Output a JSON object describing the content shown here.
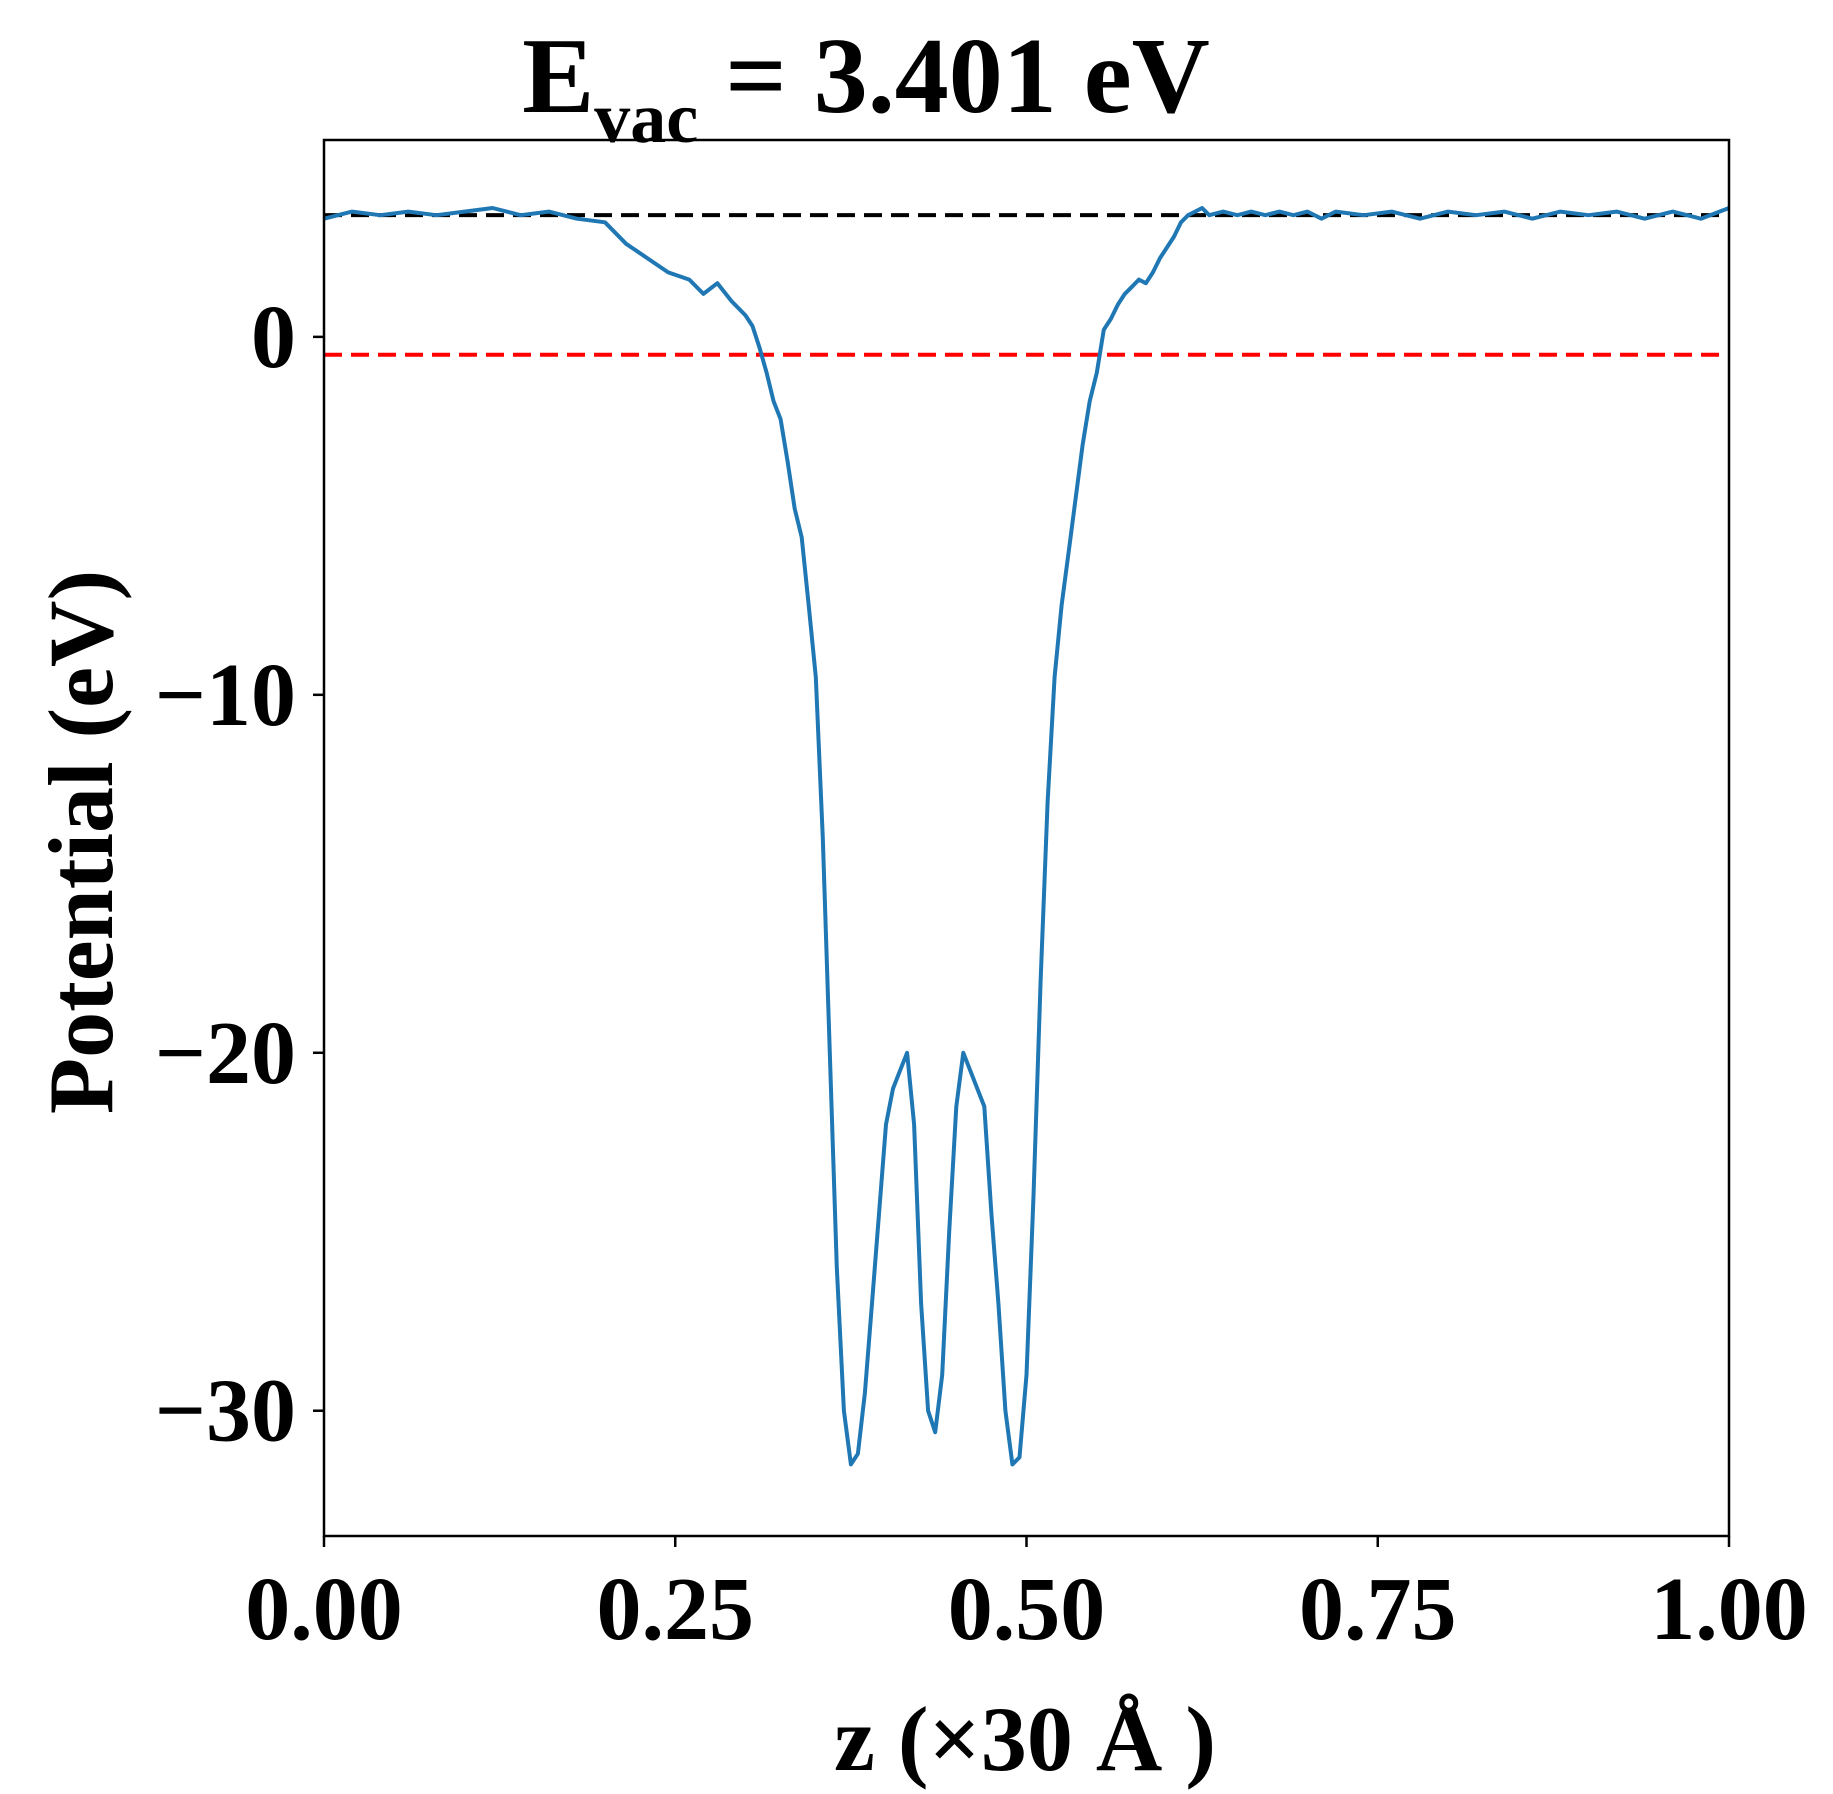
{
  "chart_data": {
    "type": "line",
    "title": {
      "main": "E",
      "subscript": "vac",
      "rest": " = 3.401 eV"
    },
    "xlabel": "z (×30 Å )",
    "ylabel": "Potential (eV)",
    "xlim": [
      0.0,
      1.0
    ],
    "ylim": [
      -33.5,
      5.5
    ],
    "x_ticks": [
      0.0,
      0.25,
      0.5,
      0.75,
      1.0
    ],
    "x_tick_labels": [
      "0.00",
      "0.25",
      "0.50",
      "0.75",
      "1.00"
    ],
    "y_ticks": [
      0,
      -10,
      -20,
      -30
    ],
    "y_tick_labels": [
      "0",
      "−10",
      "−20",
      "−30"
    ],
    "grid": false,
    "legend": "none",
    "reference_lines": [
      {
        "y": 3.401,
        "color": "#000000",
        "style": "dashed"
      },
      {
        "y": -0.5,
        "color": "#ff0000",
        "style": "dashed"
      }
    ],
    "series": [
      {
        "color": "#1f77b4",
        "x": [
          0.0,
          0.02,
          0.04,
          0.06,
          0.08,
          0.1,
          0.12,
          0.14,
          0.16,
          0.18,
          0.2,
          0.215,
          0.23,
          0.245,
          0.26,
          0.27,
          0.28,
          0.29,
          0.3,
          0.305,
          0.31,
          0.315,
          0.32,
          0.325,
          0.33,
          0.335,
          0.34,
          0.345,
          0.35,
          0.355,
          0.36,
          0.365,
          0.37,
          0.375,
          0.38,
          0.385,
          0.39,
          0.395,
          0.4,
          0.405,
          0.41,
          0.415,
          0.42,
          0.425,
          0.43,
          0.435,
          0.44,
          0.445,
          0.45,
          0.455,
          0.46,
          0.465,
          0.47,
          0.475,
          0.48,
          0.485,
          0.49,
          0.495,
          0.5,
          0.505,
          0.51,
          0.515,
          0.52,
          0.525,
          0.53,
          0.535,
          0.54,
          0.545,
          0.55,
          0.555,
          0.56,
          0.565,
          0.57,
          0.575,
          0.58,
          0.585,
          0.59,
          0.595,
          0.6,
          0.605,
          0.61,
          0.615,
          0.62,
          0.625,
          0.63,
          0.64,
          0.65,
          0.66,
          0.67,
          0.68,
          0.69,
          0.7,
          0.71,
          0.72,
          0.74,
          0.76,
          0.78,
          0.8,
          0.82,
          0.84,
          0.86,
          0.88,
          0.9,
          0.92,
          0.94,
          0.96,
          0.98,
          1.0
        ],
        "y": [
          3.3,
          3.5,
          3.4,
          3.5,
          3.4,
          3.5,
          3.6,
          3.4,
          3.5,
          3.3,
          3.2,
          2.6,
          2.2,
          1.8,
          1.6,
          1.2,
          1.5,
          1.0,
          0.6,
          0.3,
          -0.3,
          -1.0,
          -1.8,
          -2.3,
          -3.5,
          -4.8,
          -5.6,
          -7.5,
          -9.5,
          -14.0,
          -20.0,
          -26.0,
          -30.0,
          -31.5,
          -31.2,
          -29.5,
          -27.0,
          -24.5,
          -22.0,
          -21.0,
          -20.5,
          -20.0,
          -22.0,
          -27.0,
          -30.0,
          -30.6,
          -29.0,
          -25.0,
          -21.5,
          -20.0,
          -20.5,
          -21.0,
          -21.5,
          -24.5,
          -27.0,
          -30.0,
          -31.5,
          -31.3,
          -29.0,
          -24.0,
          -18.0,
          -13.0,
          -9.5,
          -7.5,
          -6.0,
          -4.5,
          -3.0,
          -1.8,
          -1.0,
          0.2,
          0.5,
          0.9,
          1.2,
          1.4,
          1.6,
          1.5,
          1.8,
          2.2,
          2.5,
          2.8,
          3.2,
          3.4,
          3.5,
          3.6,
          3.4,
          3.5,
          3.4,
          3.5,
          3.4,
          3.5,
          3.4,
          3.5,
          3.3,
          3.5,
          3.4,
          3.5,
          3.3,
          3.5,
          3.4,
          3.5,
          3.3,
          3.5,
          3.4,
          3.5,
          3.3,
          3.5,
          3.3,
          3.6
        ]
      }
    ]
  }
}
